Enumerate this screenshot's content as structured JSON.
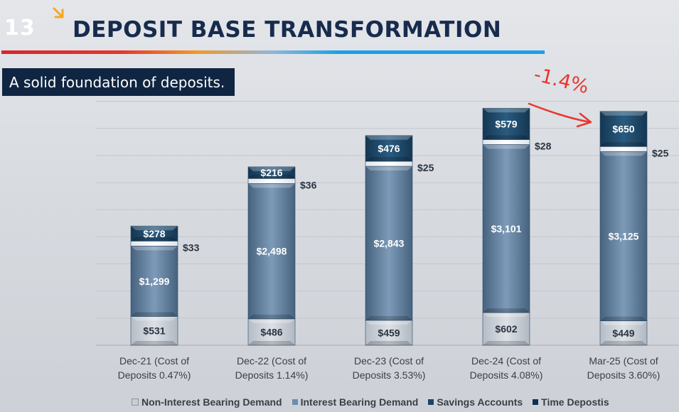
{
  "slide": {
    "number": "13",
    "title": "DEPOSIT BASE TRANSFORMATION",
    "subtitle": "A solid foundation of deposits.",
    "annotation": "-1.4%"
  },
  "colors": {
    "title": "#172b4d",
    "subtitle_bg": "#0f2542",
    "non_interest": "#d3d8de",
    "interest": "#6f8daa",
    "savings": "#f0f4f7",
    "time": "#1f4a6b",
    "annotation": "#e8372f",
    "arrow_icon": "#f5a623"
  },
  "chart_data": {
    "type": "bar",
    "stacked": true,
    "categories": [
      "Dec-21 (Cost of Deposits 0.47%)",
      "Dec-22 (Cost of Deposits 1.14%)",
      "Dec-23 (Cost of Deposits 3.53%)",
      "Dec-24 (Cost of Deposits 4.08%)",
      "Mar-25 (Cost of Deposits 3.60%)"
    ],
    "category_lines": [
      [
        "Dec-21 (Cost of",
        "Deposits 0.47%)"
      ],
      [
        "Dec-22 (Cost of",
        "Deposits 1.14%)"
      ],
      [
        "Dec-23 (Cost of",
        "Deposits 3.53%)"
      ],
      [
        "Dec-24 (Cost of",
        "Deposits 4.08%)"
      ],
      [
        "Mar-25 (Cost of",
        "Deposits 3.60%)"
      ]
    ],
    "series": [
      {
        "name": "Non-Interest Bearing Demand",
        "values": [
          531,
          486,
          459,
          602,
          449
        ],
        "labels": [
          "$531",
          "$486",
          "$459",
          "$602",
          "$449"
        ]
      },
      {
        "name": "Interest Bearing Demand",
        "values": [
          1299,
          2498,
          2843,
          3101,
          3125
        ],
        "labels": [
          "$1,299",
          "$2,498",
          "$2,843",
          "$3,101",
          "$3,125"
        ]
      },
      {
        "name": "Savings Accounts",
        "values": [
          33,
          36,
          25,
          28,
          25
        ],
        "labels": [
          "$33",
          "$36",
          "$25",
          "$28",
          "$25"
        ]
      },
      {
        "name": "Time Depostis",
        "values": [
          278,
          216,
          476,
          579,
          650
        ],
        "labels": [
          "$278",
          "$216",
          "$476",
          "$579",
          "$650"
        ]
      }
    ],
    "ylim": [
      0,
      4500
    ],
    "grid": true,
    "legend_position": "bottom"
  }
}
